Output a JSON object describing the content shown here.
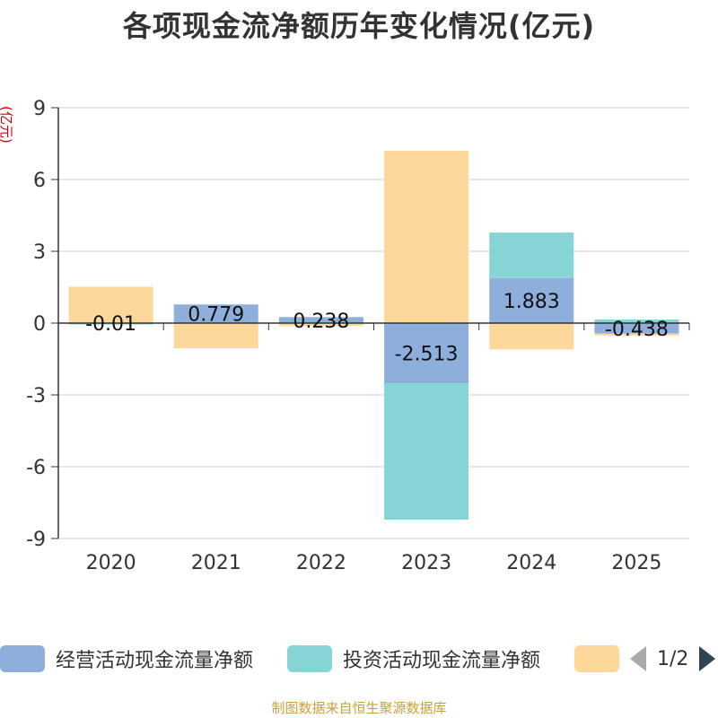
{
  "title": "各项现金流净额历年变化情况(亿元)",
  "source_note": "制图数据来自恒生聚源数据库",
  "legend_page": "1/2",
  "colors": {
    "operating": "#8eaedc",
    "investing": "#86d4d6",
    "financing": "#fdd89a",
    "axis": "#333333",
    "grid": "#cccccc",
    "ylabel": "#cc0000"
  },
  "chart_data": {
    "type": "bar",
    "stacked": true,
    "title": "各项现金流净额历年变化情况(亿元)",
    "ylabel": "(亿元)",
    "xlabel": "",
    "ylim": [
      -9,
      9
    ],
    "yticks": [
      9,
      6,
      3,
      0,
      -3,
      -6,
      -9
    ],
    "grid": true,
    "legend_position": "bottom",
    "categories": [
      "2020",
      "2021",
      "2022",
      "2023",
      "2024",
      "2025"
    ],
    "series": [
      {
        "name": "经营活动现金流量净额",
        "color_key": "operating",
        "values": [
          -0.01,
          0.779,
          0.238,
          -2.513,
          1.883,
          -0.438
        ],
        "labels": [
          "-0.01",
          "0.779",
          "0.238",
          "-2.513",
          "1.883",
          "-0.438"
        ]
      },
      {
        "name": "投资活动现金流量净额",
        "color_key": "investing",
        "values": [
          -0.05,
          0.0,
          0.02,
          -5.7,
          1.9,
          0.15
        ]
      },
      {
        "name": "",
        "color_key": "financing",
        "values": [
          1.52,
          -1.05,
          -0.12,
          7.2,
          -1.1,
          -0.08
        ]
      }
    ]
  }
}
